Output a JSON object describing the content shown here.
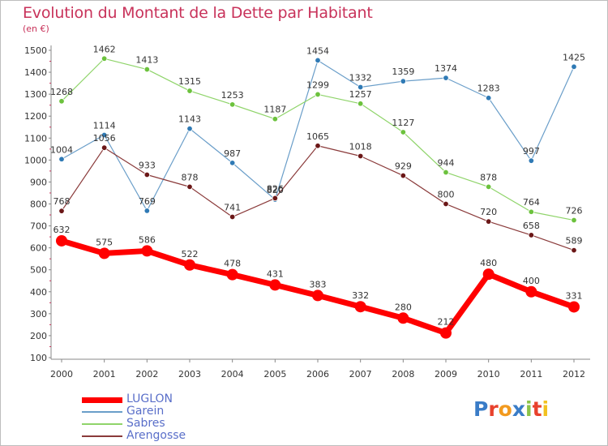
{
  "header": {
    "title": "Evolution du Montant de la Dette par Habitant",
    "subtitle": "(en €)"
  },
  "colors": {
    "title": "#c8325a",
    "axis": "#555555",
    "grid": "#ffffff",
    "plot_border": "#bdbdbd"
  },
  "logo": {
    "text": "Proxiti",
    "letter_colors": [
      "#3a7cc7",
      "#e8412c",
      "#f29a1f",
      "#3a7cc7",
      "#8bc34a",
      "#e8412c",
      "#f2c11f"
    ]
  },
  "chart_data": {
    "type": "line",
    "title": "Evolution du Montant de la Dette par Habitant",
    "subtitle": "(en €)",
    "xlabel": "",
    "ylabel": "",
    "x": [
      "2000",
      "2001",
      "2002",
      "2003",
      "2004",
      "2005",
      "2006",
      "2007",
      "2008",
      "2009",
      "2010",
      "2011",
      "2012"
    ],
    "ylim": [
      100,
      1500
    ],
    "yticks": [
      100,
      200,
      300,
      400,
      500,
      600,
      700,
      800,
      900,
      1000,
      1100,
      1200,
      1300,
      1400,
      1500
    ],
    "grid": false,
    "legend_position": "bottom-left",
    "series": [
      {
        "name": "Garein",
        "color": "#6a9ec9",
        "marker": "#2f7ab5",
        "width": 1.2,
        "values": [
          1004,
          1114,
          769,
          1143,
          987,
          820,
          1454,
          1332,
          1359,
          1374,
          1283,
          997,
          1425
        ],
        "labels": [
          "1004",
          "1114",
          "769",
          "1143",
          "987",
          "820",
          "1454",
          "1332",
          "1359",
          "1374",
          "1283",
          "997",
          "1425"
        ]
      },
      {
        "name": "Sabres",
        "color": "#8fd46a",
        "marker": "#6cc23d",
        "width": 1.2,
        "values": [
          1268,
          1462,
          1413,
          1315,
          1253,
          1187,
          1299,
          1257,
          1127,
          944,
          878,
          764,
          726
        ],
        "labels": [
          "1268",
          "1462",
          "1413",
          "1315",
          "1253",
          "1187",
          "1299",
          "1257",
          "1127",
          "944",
          "878",
          "764",
          "726"
        ]
      },
      {
        "name": "Arengosse",
        "color": "#8a3a3a",
        "marker": "#6b1717",
        "width": 1.2,
        "values": [
          768,
          1056,
          933,
          878,
          741,
          826,
          1065,
          1018,
          929,
          800,
          720,
          658,
          589
        ],
        "labels": [
          "768",
          "1056",
          "933",
          "878",
          "741",
          "826",
          "1065",
          "1018",
          "929",
          "800",
          "720",
          "658",
          "589"
        ]
      },
      {
        "name": "LUGLON",
        "color": "#ff0000",
        "marker": "#ff0000",
        "width": 7,
        "values": [
          632,
          575,
          586,
          522,
          478,
          431,
          383,
          332,
          280,
          212,
          480,
          400,
          331
        ],
        "labels": [
          "632",
          "575",
          "586",
          "522",
          "478",
          "431",
          "383",
          "332",
          "280",
          "212",
          "480",
          "400",
          "331"
        ]
      }
    ],
    "legend": [
      {
        "name": "LUGLON",
        "color": "#ff0000",
        "thickness": 7,
        "label_color": "#5a6fc9"
      },
      {
        "name": "Garein",
        "color": "#6a9ec9",
        "thickness": 2,
        "label_color": "#5a6fc9"
      },
      {
        "name": "Sabres",
        "color": "#8fd46a",
        "thickness": 2,
        "label_color": "#5a6fc9"
      },
      {
        "name": "Arengosse",
        "color": "#8a3a3a",
        "thickness": 2,
        "label_color": "#5a6fc9"
      }
    ]
  }
}
